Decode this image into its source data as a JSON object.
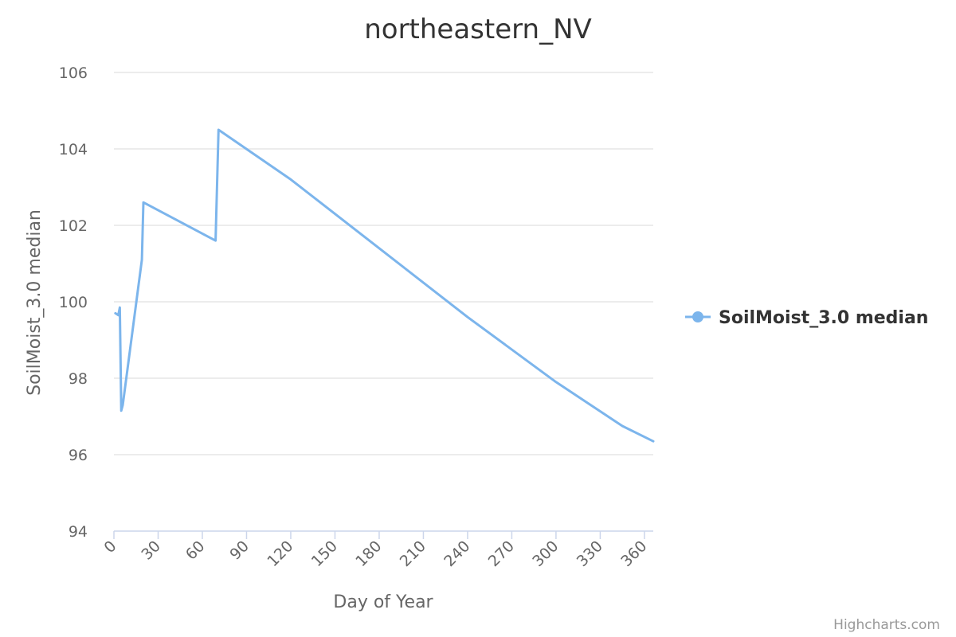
{
  "chart_data": {
    "type": "line",
    "title": "northeastern_NV",
    "xlabel": "Day of Year",
    "ylabel": "SoilMoist_3.0 median",
    "xlim": [
      0,
      366
    ],
    "ylim": [
      94,
      106
    ],
    "x_ticks": [
      0,
      30,
      60,
      90,
      120,
      150,
      180,
      210,
      240,
      270,
      300,
      330,
      360
    ],
    "y_ticks": [
      94,
      96,
      98,
      100,
      102,
      104,
      106
    ],
    "grid": true,
    "legend_position": "right",
    "series": [
      {
        "name": "SoilMoist_3.0 median",
        "color": "#7cb5ec",
        "x": [
          1,
          3,
          4,
          5,
          6,
          19,
          20,
          69,
          71,
          120,
          180,
          240,
          300,
          345,
          366
        ],
        "y": [
          99.7,
          99.65,
          99.85,
          97.15,
          97.3,
          101.1,
          102.6,
          101.6,
          104.5,
          103.2,
          101.4,
          99.6,
          97.9,
          96.75,
          96.35
        ]
      }
    ]
  },
  "credits": "Highcharts.com"
}
